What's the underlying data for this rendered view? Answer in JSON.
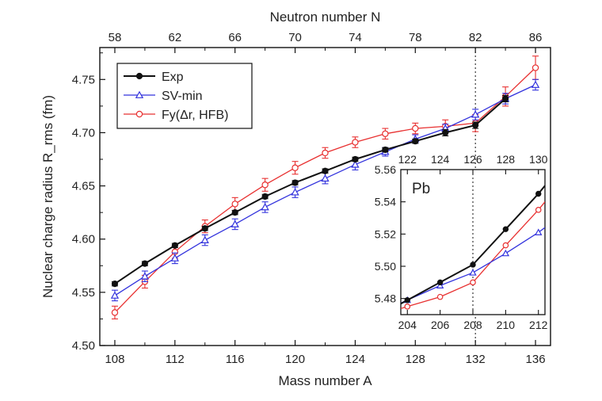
{
  "chart_data": [
    {
      "type": "line",
      "xlabel": "Mass number A",
      "ylabel": "Nuclear charge radius R_rms (fm)",
      "x2label": "Neutron number N",
      "xlim": [
        107,
        137
      ],
      "ylim": [
        4.5,
        4.78
      ],
      "x_ticks": [
        108,
        112,
        116,
        120,
        124,
        128,
        132,
        136
      ],
      "x_tick_labels": [
        "108",
        "112",
        "116",
        "120",
        "124",
        "128",
        "132",
        "136"
      ],
      "y_ticks": [
        4.5,
        4.55,
        4.6,
        4.65,
        4.7,
        4.75
      ],
      "y_tick_labels": [
        "4.50",
        "4.55",
        "4.60",
        "4.65",
        "4.70",
        "4.75"
      ],
      "x2_ticks": [
        108,
        112,
        116,
        120,
        124,
        128,
        132,
        136
      ],
      "x2_tick_labels": [
        "58",
        "62",
        "66",
        "70",
        "74",
        "78",
        "82",
        "86"
      ],
      "vline_x": 132,
      "legend_position": "top-left",
      "series": [
        {
          "name": "Exp",
          "color": "#111111",
          "marker": "filled-circle",
          "x": [
            108,
            110,
            112,
            114,
            116,
            118,
            120,
            122,
            124,
            126,
            128,
            130,
            132,
            134
          ],
          "y": [
            4.558,
            4.577,
            4.594,
            4.61,
            4.625,
            4.64,
            4.653,
            4.664,
            4.675,
            4.684,
            4.692,
            4.7,
            4.707,
            4.732
          ],
          "err": [
            0.002,
            0.002,
            0.002,
            0.002,
            0.002,
            0.002,
            0.002,
            0.002,
            0.002,
            0.002,
            0.002,
            0.003,
            0.003,
            0.003
          ]
        },
        {
          "name": "SV-min",
          "color": "#3333dd",
          "marker": "open-triangle",
          "x": [
            108,
            110,
            112,
            114,
            116,
            118,
            120,
            122,
            124,
            126,
            128,
            130,
            132,
            134,
            136
          ],
          "y": [
            4.547,
            4.565,
            4.582,
            4.599,
            4.614,
            4.63,
            4.644,
            4.657,
            4.67,
            4.682,
            4.694,
            4.704,
            4.717,
            4.732,
            4.745
          ],
          "err": [
            0.005,
            0.005,
            0.005,
            0.005,
            0.005,
            0.005,
            0.005,
            0.005,
            0.005,
            0.004,
            0.004,
            0.004,
            0.005,
            0.005,
            0.005
          ]
        },
        {
          "name": "Fy(Δr, HFB)",
          "color": "#e83030",
          "marker": "open-circle",
          "x": [
            108,
            110,
            112,
            114,
            116,
            118,
            120,
            122,
            124,
            126,
            128,
            130,
            132,
            134,
            136
          ],
          "y": [
            4.531,
            4.56,
            4.588,
            4.612,
            4.633,
            4.651,
            4.667,
            4.681,
            4.691,
            4.699,
            4.704,
            4.706,
            4.709,
            4.734,
            4.761
          ],
          "err": [
            0.006,
            0.006,
            0.006,
            0.006,
            0.006,
            0.006,
            0.006,
            0.005,
            0.005,
            0.005,
            0.005,
            0.006,
            0.008,
            0.009,
            0.011
          ]
        }
      ]
    },
    {
      "type": "line",
      "title": "Pb",
      "xlim": [
        203.6,
        212.4
      ],
      "ylim": [
        5.47,
        5.56
      ],
      "x_ticks": [
        204,
        206,
        208,
        210,
        212
      ],
      "x_tick_labels": [
        "204",
        "206",
        "208",
        "210",
        "212"
      ],
      "y_ticks": [
        5.48,
        5.5,
        5.52,
        5.54,
        5.56
      ],
      "y_tick_labels": [
        "5.48",
        "5.50",
        "5.52",
        "5.54",
        "5.56"
      ],
      "x2_ticks": [
        204,
        206,
        208,
        210,
        212
      ],
      "x2_tick_labels": [
        "122",
        "124",
        "126",
        "128",
        "130"
      ],
      "vline_x": 208,
      "series": [
        {
          "name": "Exp",
          "color": "#111111",
          "marker": "filled-circle",
          "x": [
            204,
            206,
            208,
            210,
            212
          ],
          "y": [
            5.479,
            5.49,
            5.501,
            5.523,
            5.545
          ],
          "extend_to": [
            212.4,
            5.55
          ]
        },
        {
          "name": "SV-min",
          "color": "#3333dd",
          "marker": "open-triangle",
          "x": [
            204,
            206,
            208,
            210,
            212
          ],
          "y": [
            5.479,
            5.488,
            5.496,
            5.508,
            5.521
          ],
          "extend_to": [
            212.4,
            5.524
          ]
        },
        {
          "name": "Fy(Δr, HFB)",
          "color": "#e83030",
          "marker": "open-circle",
          "x": [
            204,
            206,
            208,
            210,
            212
          ],
          "y": [
            5.475,
            5.481,
            5.49,
            5.513,
            5.535
          ],
          "extend_to": [
            212.4,
            5.54
          ]
        }
      ]
    }
  ]
}
